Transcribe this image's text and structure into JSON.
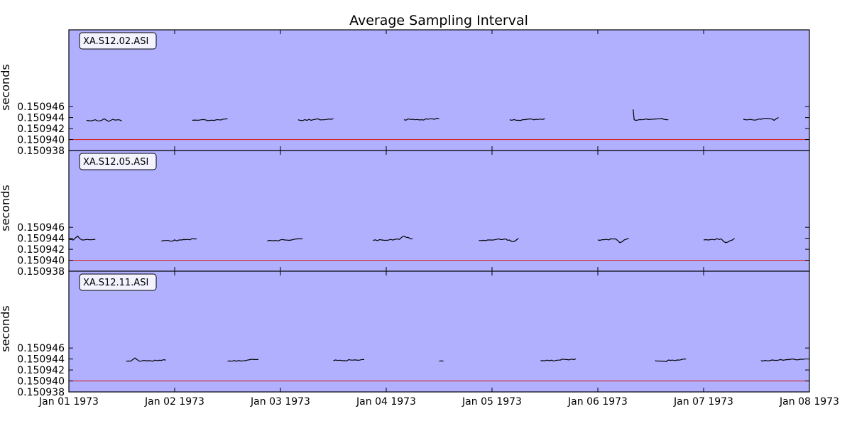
{
  "chart_data": {
    "type": "line",
    "title": "Average Sampling Interval",
    "xlim": [
      "1973-01-01",
      "1973-01-08"
    ],
    "x_tick_labels": [
      "Jan 01 1973",
      "Jan 02 1973",
      "Jan 03 1973",
      "Jan 04 1973",
      "Jan 05 1973",
      "Jan 06 1973",
      "Jan 07 1973",
      "Jan 08 1973"
    ],
    "y_tick_labels": [
      "0.150938",
      "0.150940",
      "0.150942",
      "0.150944",
      "0.150946"
    ],
    "ylim": [
      0.150938,
      0.15096
    ],
    "reference_line": {
      "value": 0.15094,
      "color": "#d62728"
    },
    "background_color": "#b0b0ff",
    "line_color": "#000000",
    "grid": false,
    "legend_placement": "top-left",
    "panels": [
      {
        "label": "XA.S12.02.ASI",
        "ylabel": "seconds",
        "segments": [
          {
            "x": [
              "1973-01-01 04:00",
              "1973-01-01 05:00",
              "1973-01-01 06:00",
              "1973-01-01 07:00",
              "1973-01-01 08:00",
              "1973-01-01 09:00",
              "1973-01-01 10:00",
              "1973-01-01 11:00",
              "1973-01-01 12:00"
            ],
            "y": [
              0.1509435,
              0.1509434,
              0.1509436,
              0.1509434,
              0.1509438,
              0.1509433,
              0.1509437,
              0.1509436,
              0.1509434
            ]
          },
          {
            "x": [
              "1973-01-02 04:00",
              "1973-01-02 06:00",
              "1973-01-02 08:00",
              "1973-01-02 10:00",
              "1973-01-02 12:00"
            ],
            "y": [
              0.1509435,
              0.1509436,
              0.1509435,
              0.1509436,
              0.1509438
            ]
          },
          {
            "x": [
              "1973-01-03 04:00",
              "1973-01-03 06:00",
              "1973-01-03 08:00",
              "1973-01-03 10:00",
              "1973-01-03 12:00"
            ],
            "y": [
              0.1509436,
              0.1509435,
              0.1509437,
              0.1509436,
              0.1509438
            ]
          },
          {
            "x": [
              "1973-01-04 04:00",
              "1973-01-04 06:00",
              "1973-01-04 08:00",
              "1973-01-04 10:00",
              "1973-01-04 12:00"
            ],
            "y": [
              0.1509436,
              0.1509437,
              0.1509436,
              0.1509438,
              0.1509438
            ]
          },
          {
            "x": [
              "1973-01-05 04:00",
              "1973-01-05 06:00",
              "1973-01-05 08:00",
              "1973-01-05 10:00",
              "1973-01-05 12:00"
            ],
            "y": [
              0.1509436,
              0.1509435,
              0.1509437,
              0.1509437,
              0.1509438
            ]
          },
          {
            "x": [
              "1973-01-06 08:00",
              "1973-01-06 08:15",
              "1973-01-06 10:00",
              "1973-01-06 12:00",
              "1973-01-06 14:00",
              "1973-01-06 16:00"
            ],
            "y": [
              0.1509455,
              0.1509436,
              0.1509436,
              0.1509437,
              0.1509438,
              0.1509436
            ]
          },
          {
            "x": [
              "1973-01-07 09:00",
              "1973-01-07 11:00",
              "1973-01-07 13:00",
              "1973-01-07 15:00",
              "1973-01-07 16:00",
              "1973-01-07 17:00"
            ],
            "y": [
              0.1509437,
              0.1509436,
              0.1509437,
              0.1509438,
              0.1509435,
              0.150944
            ]
          }
        ]
      },
      {
        "label": "XA.S12.05.ASI",
        "ylabel": "seconds",
        "segments": [
          {
            "x": [
              "1973-01-01 00:00",
              "1973-01-01 01:00",
              "1973-01-01 02:00",
              "1973-01-01 03:00",
              "1973-01-01 04:00",
              "1973-01-01 06:00"
            ],
            "y": [
              0.1509438,
              0.1509437,
              0.1509444,
              0.1509437,
              0.1509438,
              0.1509438
            ]
          },
          {
            "x": [
              "1973-01-02 20:00",
              "1973-01-02 22:00",
              "1973-01-03 00:00",
              "1973-01-03 02:00",
              "1973-01-03 04:00",
              "1973-01-02 06:00"
            ],
            "y": [
              0.1509435,
              0.1509436,
              0.1509437,
              0.1509438,
              0.1509439,
              0.1509439
            ]
          },
          {
            "x": [
              "1973-01-02 22:00"
            ],
            "y": [
              0.1509436
            ]
          }
        ]
      },
      {
        "label": "XA.S12.11.ASI",
        "ylabel": "seconds",
        "segments": []
      }
    ]
  }
}
